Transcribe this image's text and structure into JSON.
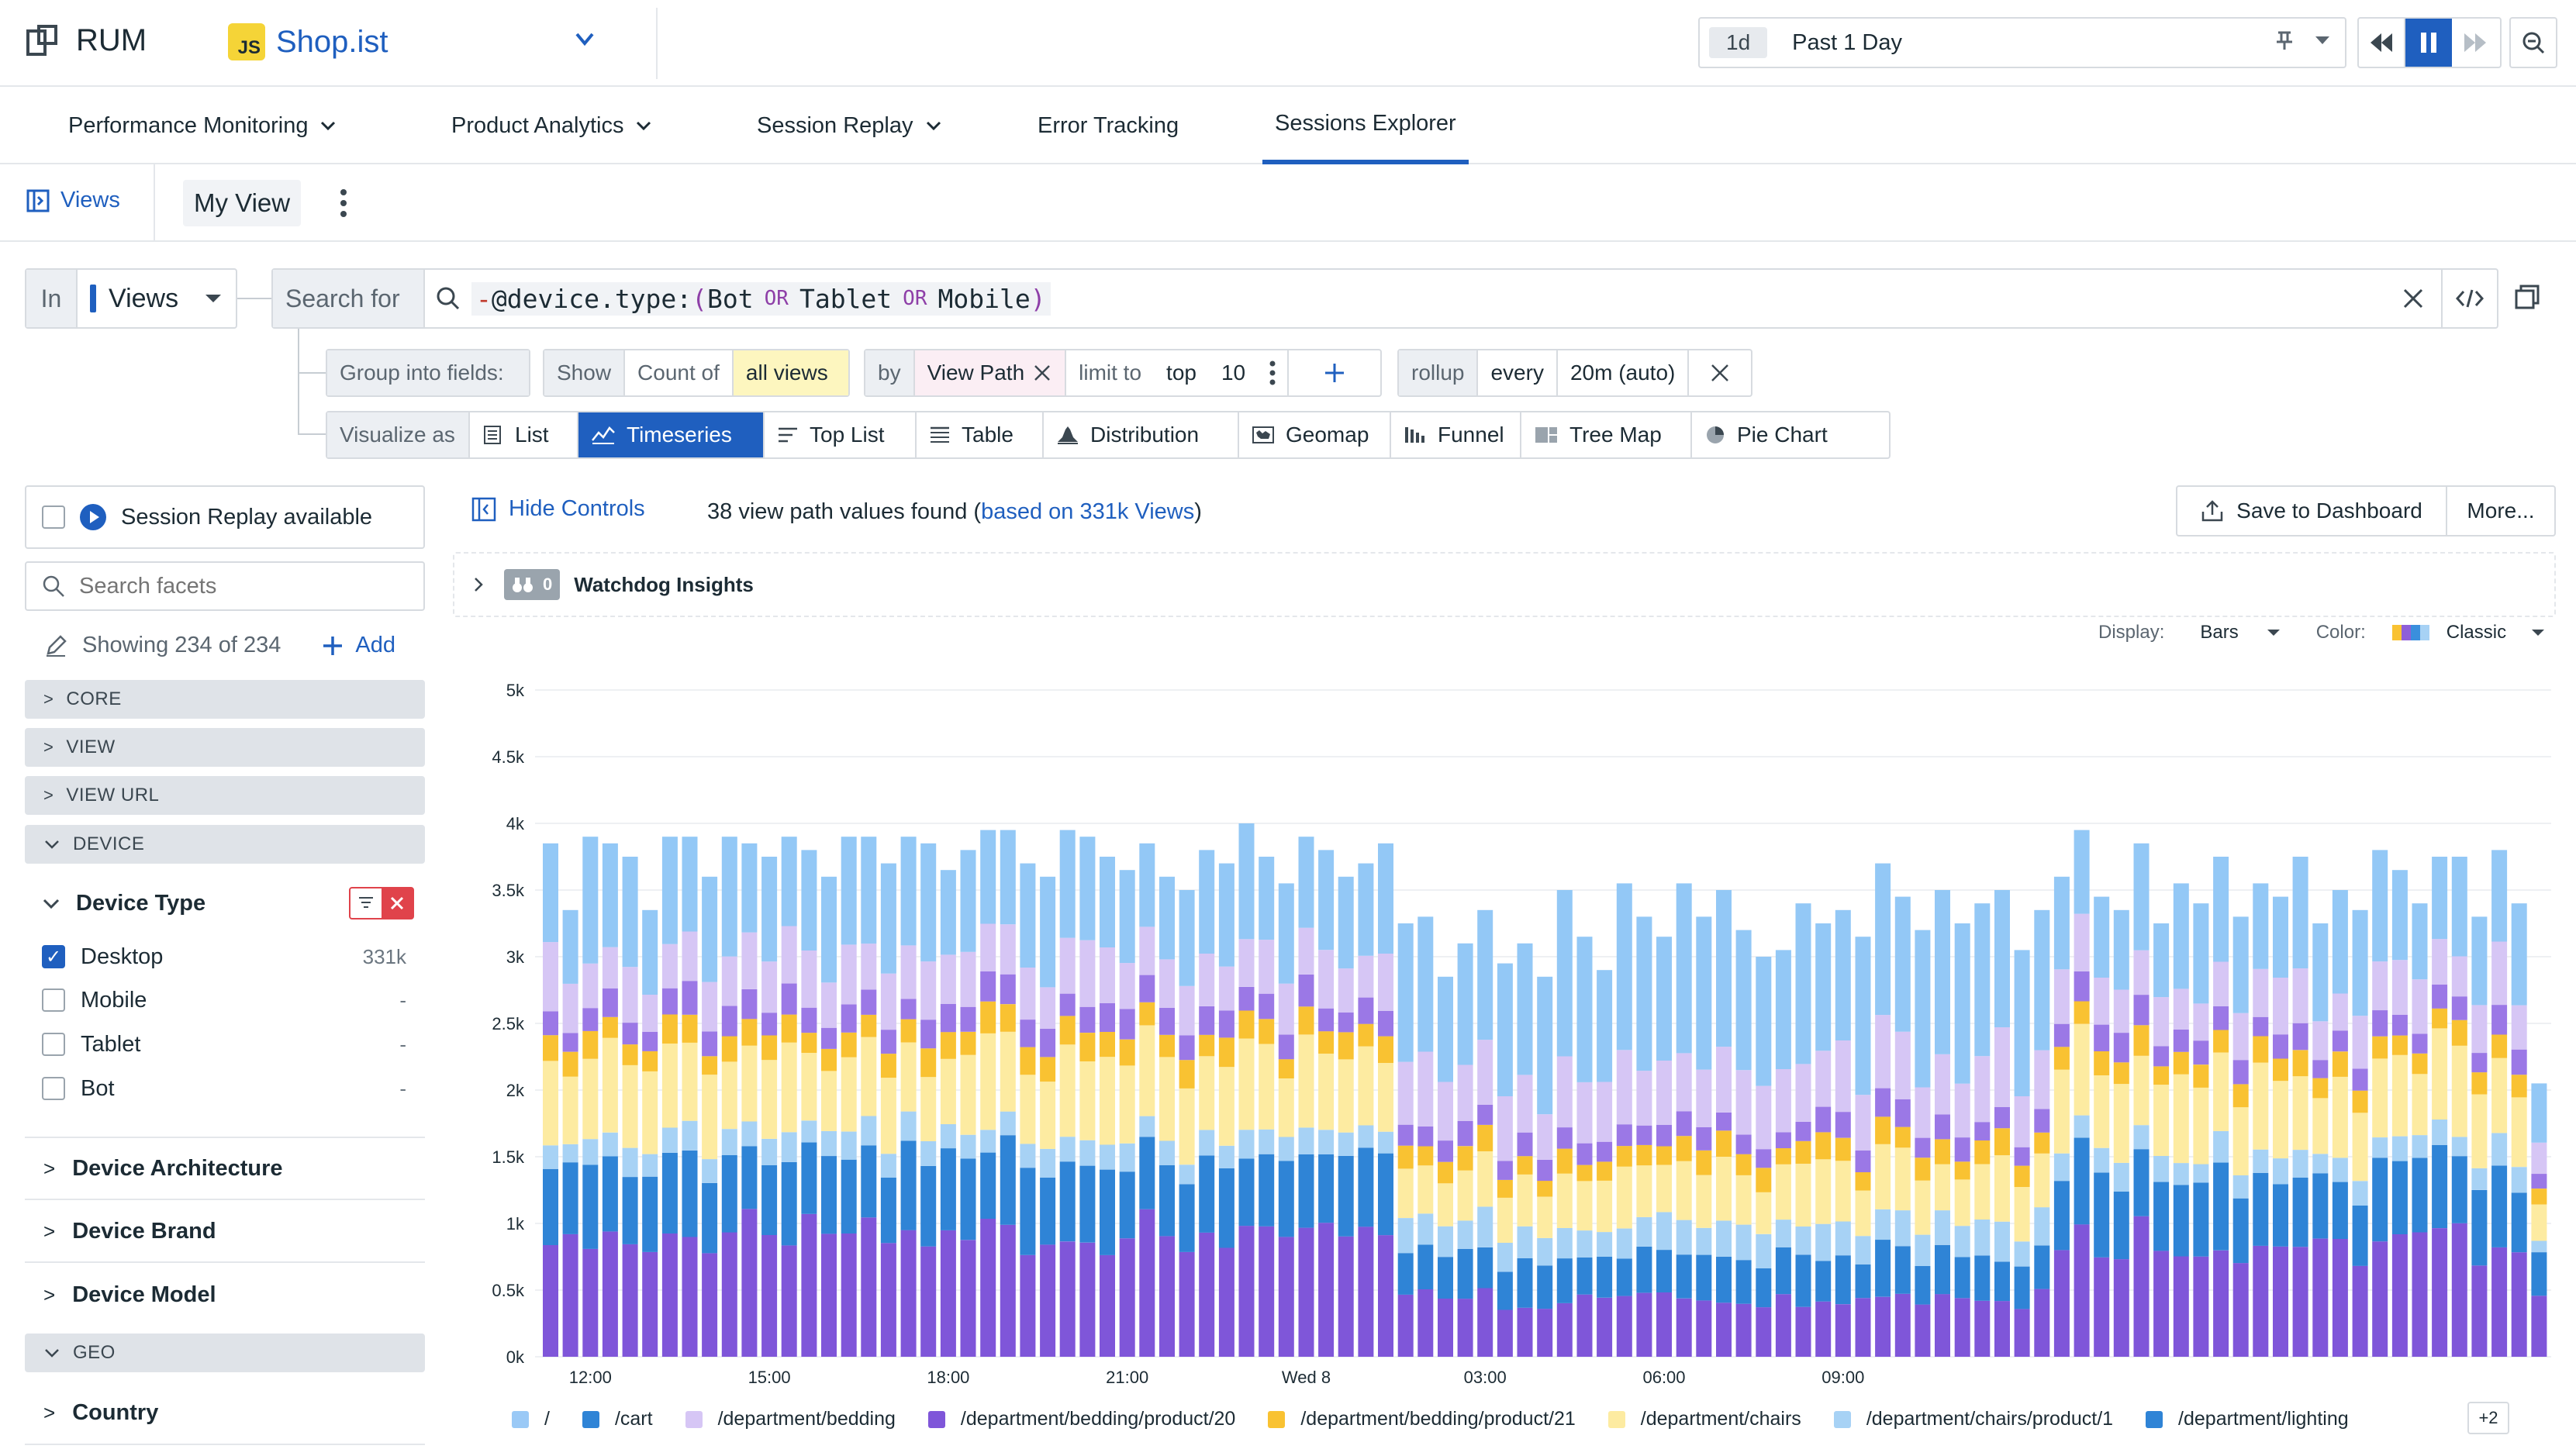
{
  "app": {
    "product": "RUM",
    "appName": "Shop.ist",
    "badge": "JS"
  },
  "time": {
    "badge": "1d",
    "label": "Past 1 Day"
  },
  "nav": {
    "tabs": [
      {
        "label": "Performance Monitoring",
        "chevron": true
      },
      {
        "label": "Product Analytics",
        "chevron": true
      },
      {
        "label": "Session Replay",
        "chevron": true
      },
      {
        "label": "Error Tracking",
        "chevron": false
      },
      {
        "label": "Sessions Explorer",
        "chevron": false,
        "active": true
      }
    ]
  },
  "views": {
    "views_label": "Views",
    "current_view": "My View"
  },
  "query": {
    "in_label": "In",
    "in_value": "Views",
    "search_for": "Search for",
    "negation": "-",
    "attribute": "@device.type:",
    "open_paren": "(",
    "term1": "Bot",
    "op1": "OR",
    "term2": "Tablet",
    "op2": "OR",
    "term3": "Mobile",
    "close_paren": ")"
  },
  "group": {
    "group_label": "Group into fields:",
    "show": "Show",
    "count_of": "Count of",
    "all_views": "all views",
    "by": "by",
    "field": "View Path",
    "limit_to": "limit to",
    "top": "top",
    "limit_value": "10",
    "rollup": "rollup",
    "every": "every",
    "interval": "20m (auto)"
  },
  "visualize": {
    "label": "Visualize as",
    "options": [
      "List",
      "Timeseries",
      "Top List",
      "Table",
      "Distribution",
      "Geomap",
      "Funnel",
      "Tree Map",
      "Pie Chart"
    ],
    "selected": "Timeseries"
  },
  "facets": {
    "session_replay": "Session Replay available",
    "search_placeholder": "Search facets",
    "showing": "Showing 234 of 234",
    "add": "Add",
    "sections": [
      "CORE",
      "VIEW",
      "VIEW URL",
      "DEVICE"
    ],
    "device_type": {
      "title": "Device Type",
      "items": [
        {
          "label": "Desktop",
          "count": "331k",
          "checked": true
        },
        {
          "label": "Mobile",
          "count": "-",
          "checked": false
        },
        {
          "label": "Tablet",
          "count": "-",
          "checked": false
        },
        {
          "label": "Bot",
          "count": "-",
          "checked": false
        }
      ]
    },
    "groups": [
      "Device Architecture",
      "Device Brand",
      "Device Model"
    ],
    "geo_section": "GEO",
    "country": "Country"
  },
  "results": {
    "hide_controls": "Hide Controls",
    "found_text": "38 view path values found (",
    "found_link": "based on 331k Views",
    "found_close": ")",
    "save": "Save to Dashboard",
    "more": "More...",
    "watchdog_count": "0",
    "watchdog_label": "Watchdog Insights",
    "display_label": "Display:",
    "display_value": "Bars",
    "color_label": "Color:",
    "color_value": "Classic",
    "legend_more": "+2"
  },
  "colors": {
    "accent": "#1f5fbf",
    "series": [
      "#8e5fd8",
      "#3a8fdd",
      "#fdeba1",
      "#f9c232",
      "#a7d2f5",
      "#d6c6f5",
      "#7dbff3",
      "#9ac9f6"
    ]
  },
  "chart_data": {
    "type": "bar",
    "stacked": true,
    "ylim": [
      0,
      5000
    ],
    "yticks": [
      "0k",
      "0.5k",
      "1k",
      "1.5k",
      "2k",
      "2.5k",
      "3k",
      "3.5k",
      "4k",
      "4.5k",
      "5k"
    ],
    "xticks": [
      "12:00",
      "15:00",
      "18:00",
      "21:00",
      "Wed 8",
      "03:00",
      "06:00",
      "09:00"
    ],
    "legend": [
      "/",
      "/cart",
      "/department/bedding",
      "/department/bedding/product/20",
      "/department/bedding/product/21",
      "/department/chairs",
      "/department/chairs/product/1",
      "/department/lighting"
    ],
    "totals": [
      3850,
      3350,
      3900,
      3850,
      3750,
      3350,
      3900,
      3900,
      3600,
      3900,
      3850,
      3750,
      3900,
      3800,
      3600,
      3900,
      3900,
      3700,
      3900,
      3850,
      3650,
      3800,
      3950,
      3950,
      3700,
      3600,
      3950,
      3900,
      3750,
      3650,
      3850,
      3600,
      3500,
      3800,
      3700,
      4000,
      3750,
      3550,
      3900,
      3800,
      3600,
      3700,
      3850,
      3250,
      3300,
      2850,
      3100,
      3350,
      2950,
      3100,
      2850,
      3500,
      3150,
      2900,
      3550,
      3300,
      3150,
      3550,
      3300,
      3500,
      3200,
      3000,
      3050,
      3400,
      3250,
      3350,
      3150,
      3700,
      3450,
      3200,
      3500,
      3250,
      3400,
      3500,
      3050,
      3350,
      3600,
      3950,
      3450,
      3350,
      3850,
      3250,
      3550,
      3400,
      3750,
      3300,
      3550,
      3450,
      3750,
      3250,
      3500,
      3350,
      3800,
      3650,
      3400,
      3750,
      3750,
      3300,
      3800,
      3400,
      2050
    ],
    "segment_fractions_note": "stack order bottom to top: lighting(#8e5fd8) /cart(#3a8fdd) chairs(#fdeba1) bedding/product/21(#f9c232) chairs/product/1(#a7d2f5) bedding/product/20(#8e5fd8 lighter) bedding(#d6c6f5) /(#9ac9f6)"
  }
}
